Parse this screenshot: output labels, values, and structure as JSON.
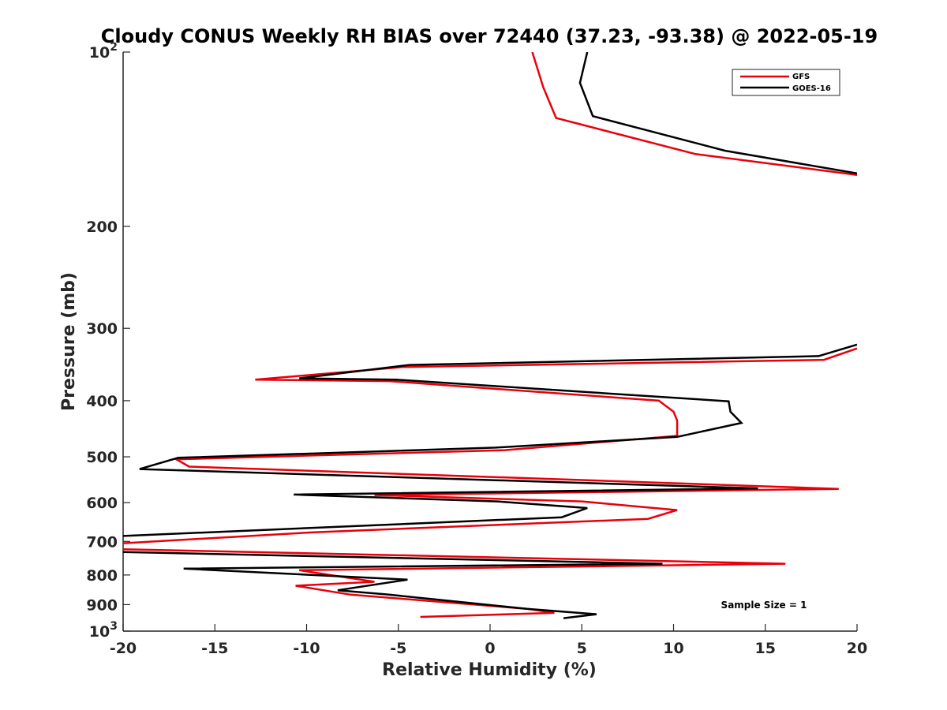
{
  "chart_data": {
    "type": "line",
    "title": "Cloudy CONUS Weekly RH BIAS over 72440 (37.23, -93.38) @ 2022-05-19",
    "xlabel": "Relative Humidity (%)",
    "ylabel": "Pressure (mb)",
    "xlim": [
      -20,
      20
    ],
    "ylim": [
      100,
      1000
    ],
    "yscale": "log",
    "y_reversed": true,
    "xticks": [
      -20,
      -15,
      -10,
      -5,
      0,
      5,
      10,
      15,
      20
    ],
    "xtick_labels": [
      "-20",
      "-15",
      "-10",
      "-5",
      "0",
      "5",
      "10",
      "15",
      "20"
    ],
    "yticks": [
      100,
      200,
      300,
      400,
      500,
      600,
      700,
      800,
      900,
      1000
    ],
    "ytick_labels": [
      {
        "base": "10",
        "exp": "2"
      },
      {
        "base": "200",
        "exp": ""
      },
      {
        "base": "300",
        "exp": ""
      },
      {
        "base": "400",
        "exp": ""
      },
      {
        "base": "500",
        "exp": ""
      },
      {
        "base": "600",
        "exp": ""
      },
      {
        "base": "700",
        "exp": ""
      },
      {
        "base": "800",
        "exp": ""
      },
      {
        "base": "900",
        "exp": ""
      },
      {
        "base": "10",
        "exp": "3"
      }
    ],
    "grid": false,
    "legend_position": "top-right",
    "annotation": "Sample Size = 1",
    "series": [
      {
        "name": "GFS",
        "color": "#e8000b",
        "x": [
          2.3,
          2.9,
          3.6,
          11.2,
          20,
          null,
          20,
          18.2,
          -4.8,
          -12.8,
          -5.5,
          9.2,
          10.0,
          10.2,
          10.2,
          0.8,
          -17.1,
          -16.4,
          19.0,
          -6.3,
          5.0,
          10.2,
          8.6,
          -9.6,
          -20,
          null,
          -20,
          16.1,
          -10.4,
          -6.3,
          -10.6,
          -7.6,
          2.0,
          3.5,
          -3.8
        ],
        "y": [
          100,
          115,
          130,
          150,
          163,
          null,
          325,
          340,
          350,
          368,
          370,
          400,
          418,
          433,
          460,
          487,
          505,
          520,
          568,
          582,
          597,
          618,
          640,
          675,
          705,
          null,
          722,
          765,
          785,
          822,
          835,
          865,
          915,
          930,
          945
        ]
      },
      {
        "name": "GOES-16",
        "color": "#000000",
        "x": [
          5.3,
          4.9,
          5.6,
          12.8,
          20,
          null,
          20,
          17.9,
          -4.4,
          -10.4,
          -5.1,
          13.0,
          13.1,
          13.7,
          10.2,
          0.3,
          -17.0,
          -19.1,
          14.6,
          -10.7,
          0.4,
          5.3,
          3.9,
          -20,
          null,
          -20,
          9.4,
          -16.7,
          -4.5,
          -8.3,
          -5.5,
          2.0,
          5.8,
          4.0
        ],
        "y": [
          100,
          113,
          129,
          148,
          162,
          null,
          320,
          335,
          347,
          366,
          368,
          401,
          418,
          437,
          462,
          482,
          502,
          525,
          567,
          581,
          597,
          613,
          636,
          685,
          null,
          730,
          765,
          780,
          815,
          850,
          865,
          915,
          935,
          950
        ]
      }
    ]
  }
}
